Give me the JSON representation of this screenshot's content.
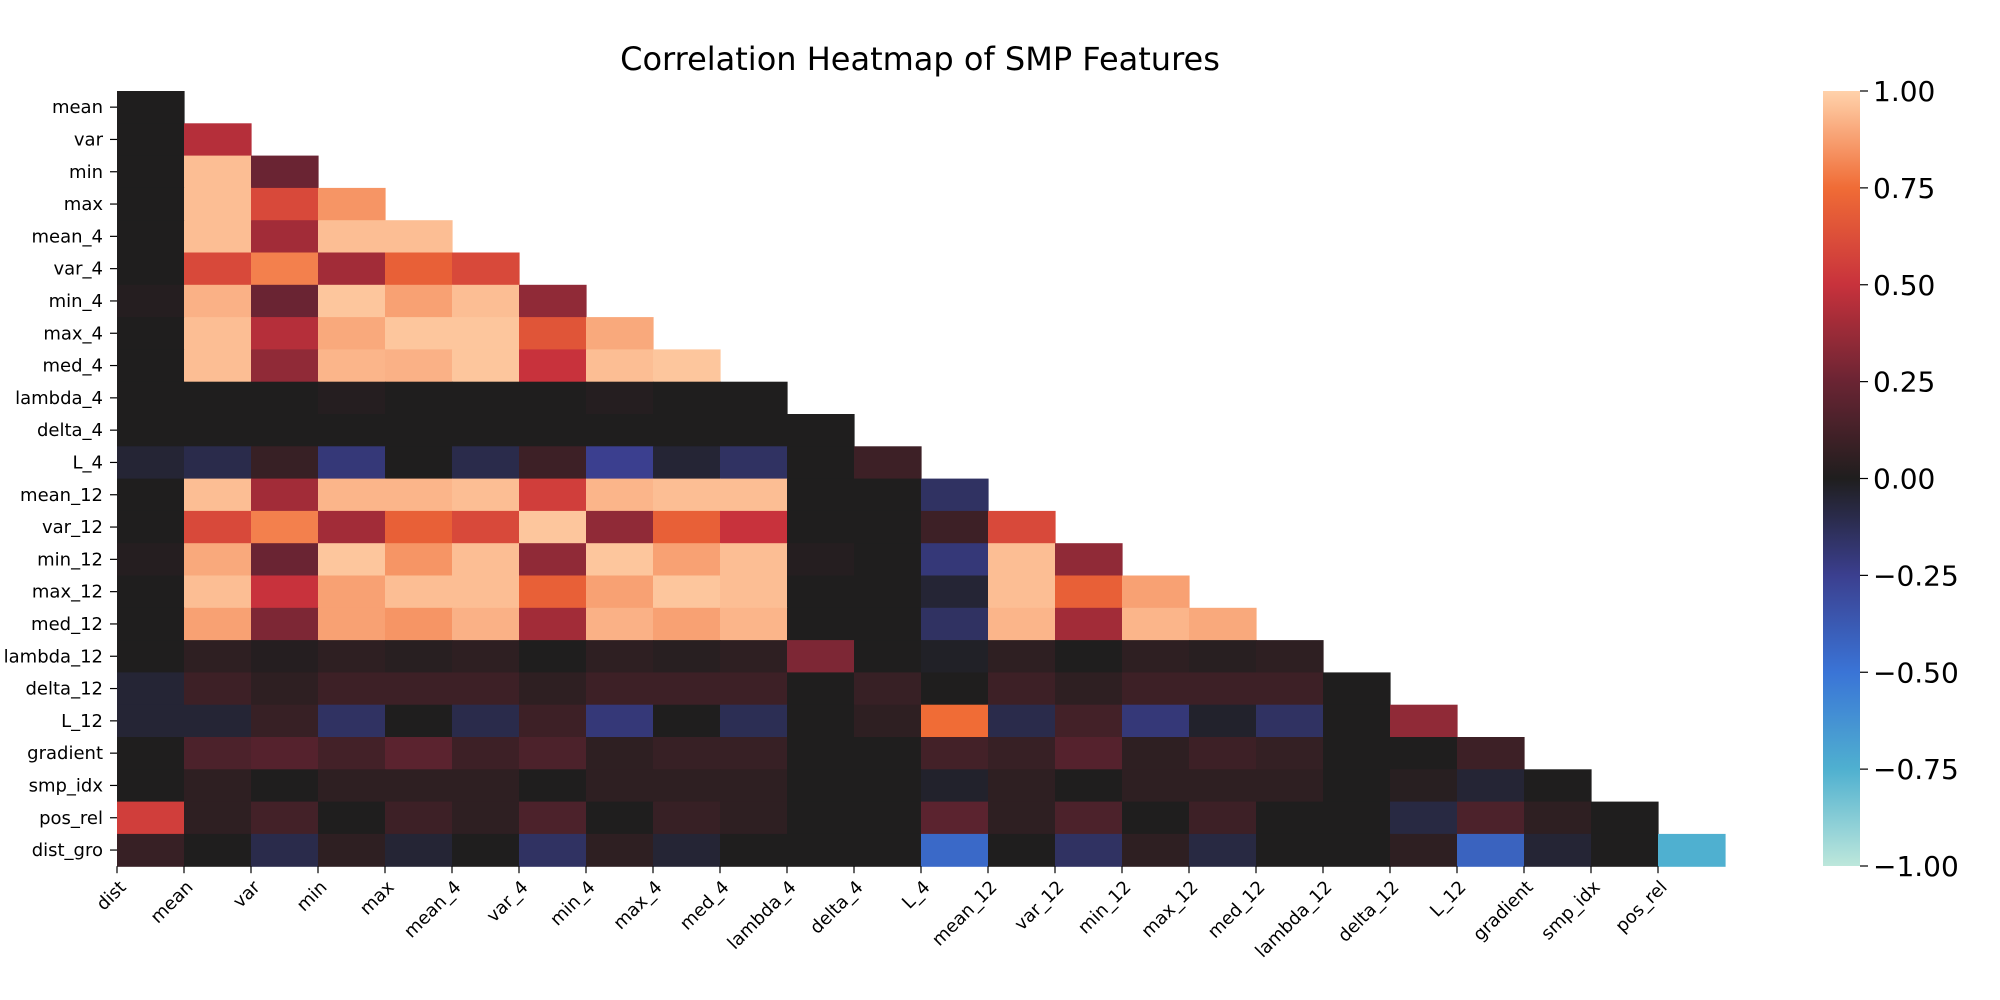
{
  "chart_data": {
    "type": "heatmap",
    "title": "Correlation Heatmap of SMP Features",
    "xlabel": "",
    "ylabel": "",
    "row_labels": [
      "mean",
      "var",
      "min",
      "max",
      "mean_4",
      "var_4",
      "min_4",
      "max_4",
      "med_4",
      "lambda_4",
      "delta_4",
      "L_4",
      "mean_12",
      "var_12",
      "min_12",
      "max_12",
      "med_12",
      "lambda_12",
      "delta_12",
      "L_12",
      "gradient",
      "smp_idx",
      "pos_rel",
      "dist_gro"
    ],
    "col_labels": [
      "dist",
      "mean",
      "var",
      "min",
      "max",
      "mean_4",
      "var_4",
      "min_4",
      "max_4",
      "med_4",
      "lambda_4",
      "delta_4",
      "L_4",
      "mean_12",
      "var_12",
      "min_12",
      "max_12",
      "med_12",
      "lambda_12",
      "delta_12",
      "L_12",
      "gradient",
      "smp_idx",
      "pos_rel"
    ],
    "mask": "upper triangle",
    "values": [
      [
        0.0
      ],
      [
        0.0,
        0.45
      ],
      [
        0.0,
        0.95,
        0.25
      ],
      [
        0.0,
        0.95,
        0.6,
        0.85
      ],
      [
        0.0,
        0.95,
        0.4,
        0.95,
        0.95
      ],
      [
        0.0,
        0.6,
        0.8,
        0.4,
        0.7,
        0.6
      ],
      [
        0.02,
        0.92,
        0.25,
        0.97,
        0.88,
        0.95,
        0.35
      ],
      [
        0.0,
        0.95,
        0.45,
        0.9,
        0.97,
        0.97,
        0.65,
        0.9
      ],
      [
        0.0,
        0.95,
        0.35,
        0.93,
        0.92,
        0.97,
        0.5,
        0.95,
        0.97
      ],
      [
        0.0,
        0.0,
        0.0,
        0.02,
        0.0,
        0.0,
        0.0,
        0.02,
        0.0,
        0.0
      ],
      [
        0.0,
        0.0,
        0.0,
        0.0,
        0.0,
        0.0,
        0.0,
        0.0,
        0.0,
        0.0,
        0.0
      ],
      [
        -0.05,
        -0.1,
        0.08,
        -0.2,
        0.0,
        -0.1,
        0.1,
        -0.25,
        -0.05,
        -0.15,
        0.0,
        0.1
      ],
      [
        0.0,
        0.95,
        0.4,
        0.93,
        0.93,
        0.95,
        0.55,
        0.93,
        0.95,
        0.95,
        0.0,
        0.0,
        -0.15
      ],
      [
        0.0,
        0.6,
        0.8,
        0.4,
        0.7,
        0.6,
        0.97,
        0.35,
        0.7,
        0.5,
        0.0,
        0.0,
        0.1,
        0.6
      ],
      [
        0.02,
        0.9,
        0.25,
        0.97,
        0.85,
        0.95,
        0.35,
        0.97,
        0.88,
        0.95,
        0.02,
        0.0,
        -0.2,
        0.95,
        0.35
      ],
      [
        0.0,
        0.95,
        0.5,
        0.88,
        0.95,
        0.95,
        0.7,
        0.88,
        0.97,
        0.95,
        0.0,
        0.0,
        -0.05,
        0.95,
        0.7,
        0.88
      ],
      [
        0.0,
        0.88,
        0.3,
        0.88,
        0.85,
        0.92,
        0.4,
        0.92,
        0.88,
        0.93,
        0.0,
        0.0,
        -0.15,
        0.93,
        0.4,
        0.93,
        0.9
      ],
      [
        0.0,
        0.05,
        0.02,
        0.05,
        0.03,
        0.05,
        0.0,
        0.05,
        0.03,
        0.05,
        0.3,
        0.0,
        -0.02,
        0.05,
        0.0,
        0.05,
        0.03,
        0.05
      ],
      [
        -0.05,
        0.1,
        0.05,
        0.1,
        0.1,
        0.1,
        0.05,
        0.1,
        0.1,
        0.1,
        0.0,
        0.08,
        0.0,
        0.1,
        0.05,
        0.1,
        0.1,
        0.1,
        0.0
      ],
      [
        -0.05,
        -0.05,
        0.08,
        -0.15,
        0.0,
        -0.1,
        0.1,
        -0.2,
        0.0,
        -0.12,
        0.0,
        0.05,
        0.75,
        -0.1,
        0.12,
        -0.2,
        -0.03,
        -0.15,
        0.0,
        0.35
      ],
      [
        0.0,
        0.15,
        0.18,
        0.12,
        0.2,
        0.1,
        0.15,
        0.05,
        0.08,
        0.08,
        0.0,
        0.0,
        0.12,
        0.08,
        0.18,
        0.05,
        0.1,
        0.07,
        0.0,
        0.0,
        0.1
      ],
      [
        0.0,
        0.05,
        0.0,
        0.05,
        0.05,
        0.05,
        0.0,
        0.05,
        0.05,
        0.05,
        0.0,
        0.0,
        -0.03,
        0.05,
        0.0,
        0.05,
        0.05,
        0.05,
        0.0,
        0.03,
        -0.05,
        0.0
      ],
      [
        0.55,
        0.05,
        0.12,
        0.0,
        0.1,
        0.05,
        0.15,
        0.0,
        0.08,
        0.05,
        0.0,
        0.0,
        0.2,
        0.05,
        0.15,
        0.0,
        0.1,
        0.0,
        0.0,
        -0.08,
        0.15,
        0.05,
        0.0
      ],
      [
        0.08,
        0.0,
        -0.1,
        0.05,
        -0.05,
        0.0,
        -0.15,
        0.05,
        -0.05,
        0.0,
        0.0,
        0.0,
        -0.45,
        0.0,
        -0.15,
        0.05,
        -0.08,
        0.0,
        0.0,
        0.05,
        -0.42,
        -0.05,
        0.0,
        -0.75
      ]
    ],
    "vmin": -1.0,
    "vmax": 1.0,
    "colormap": "icefire",
    "colorbar_ticks": [
      "1.00",
      "0.75",
      "0.50",
      "0.25",
      "0.00",
      "−0.25",
      "−0.50",
      "−0.75",
      "−1.00"
    ],
    "colorbar_values": [
      1.0,
      0.75,
      0.5,
      0.25,
      0.0,
      -0.25,
      -0.5,
      -0.75,
      -1.0
    ],
    "colorbar_stops": [
      [
        -1.0,
        "#bde7db"
      ],
      [
        -0.75,
        "#4fb0d0"
      ],
      [
        -0.5,
        "#3a74d6"
      ],
      [
        -0.25,
        "#3b3f8f"
      ],
      [
        0.0,
        "#1f1e1e"
      ],
      [
        0.25,
        "#6a2433"
      ],
      [
        0.5,
        "#c8323c"
      ],
      [
        0.75,
        "#f06c36"
      ],
      [
        1.0,
        "#ffd2ab"
      ]
    ]
  }
}
